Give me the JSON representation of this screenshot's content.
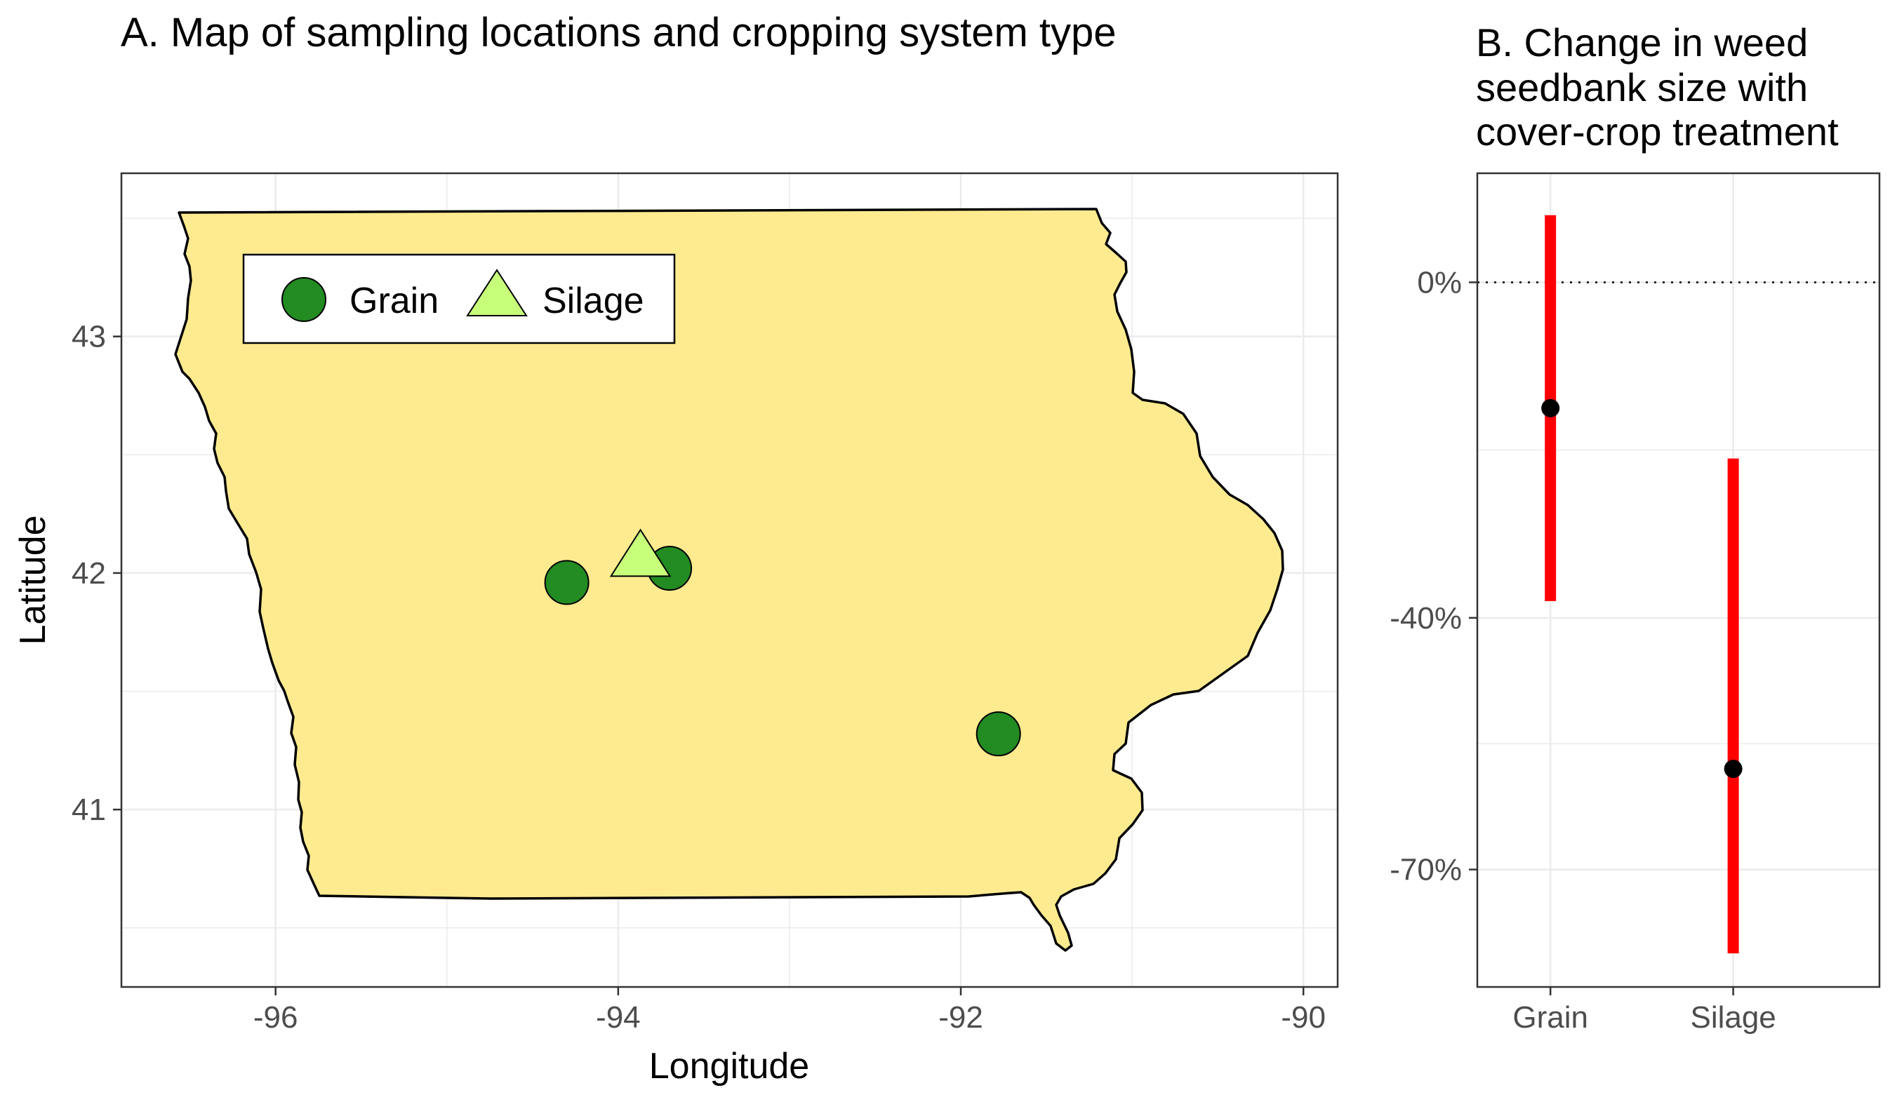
{
  "figure": {
    "panel_a_title": "A. Map of sampling locations and cropping system type",
    "panel_b_title": [
      "B. Change in weed",
      "seedbank size with",
      "cover-crop treatment"
    ]
  },
  "chart_data": [
    {
      "type": "scatter",
      "title": "A. Map of sampling locations and cropping system type",
      "xlabel": "Longitude",
      "ylabel": "Latitude",
      "xlim": [
        -96.9,
        -89.8
      ],
      "ylim": [
        40.25,
        43.69
      ],
      "xticks": [
        -96,
        -94,
        -92,
        -90
      ],
      "xtick_labels": [
        "-96",
        "-94",
        "-92",
        "-90"
      ],
      "yticks": [
        41,
        42,
        43
      ],
      "ytick_labels": [
        "41",
        "42",
        "43"
      ],
      "grid": true,
      "background_region": "Iowa state outline",
      "region_fill": "#FFEB8F",
      "legend_position": "top-left",
      "series": [
        {
          "name": "Grain",
          "marker": "circle",
          "color": "#228B22",
          "points": [
            {
              "x": -94.3,
              "y": 41.96
            },
            {
              "x": -93.7,
              "y": 42.02
            },
            {
              "x": -91.78,
              "y": 41.32
            }
          ]
        },
        {
          "name": "Silage",
          "marker": "triangle",
          "color": "#C8FF7A",
          "points": [
            {
              "x": -93.87,
              "y": 42.04
            }
          ]
        }
      ]
    },
    {
      "type": "scatter",
      "subtype": "point-range",
      "title": "B. Change in weed seedbank size with cover-crop treatment",
      "xlabel": "",
      "ylabel": "",
      "categories": [
        "Grain",
        "Silage"
      ],
      "ylim": [
        -84,
        13
      ],
      "yticks": [
        0,
        -40,
        -70
      ],
      "ytick_labels": [
        "0%",
        "-40%",
        "-70%"
      ],
      "reference_line": 0,
      "grid": true,
      "point_color": "#000000",
      "interval_color": "#FF0000",
      "points": [
        {
          "category": "Grain",
          "estimate": -15,
          "lower": -38,
          "upper": 8
        },
        {
          "category": "Silage",
          "estimate": -58,
          "lower": -80,
          "upper": -21
        }
      ]
    }
  ]
}
